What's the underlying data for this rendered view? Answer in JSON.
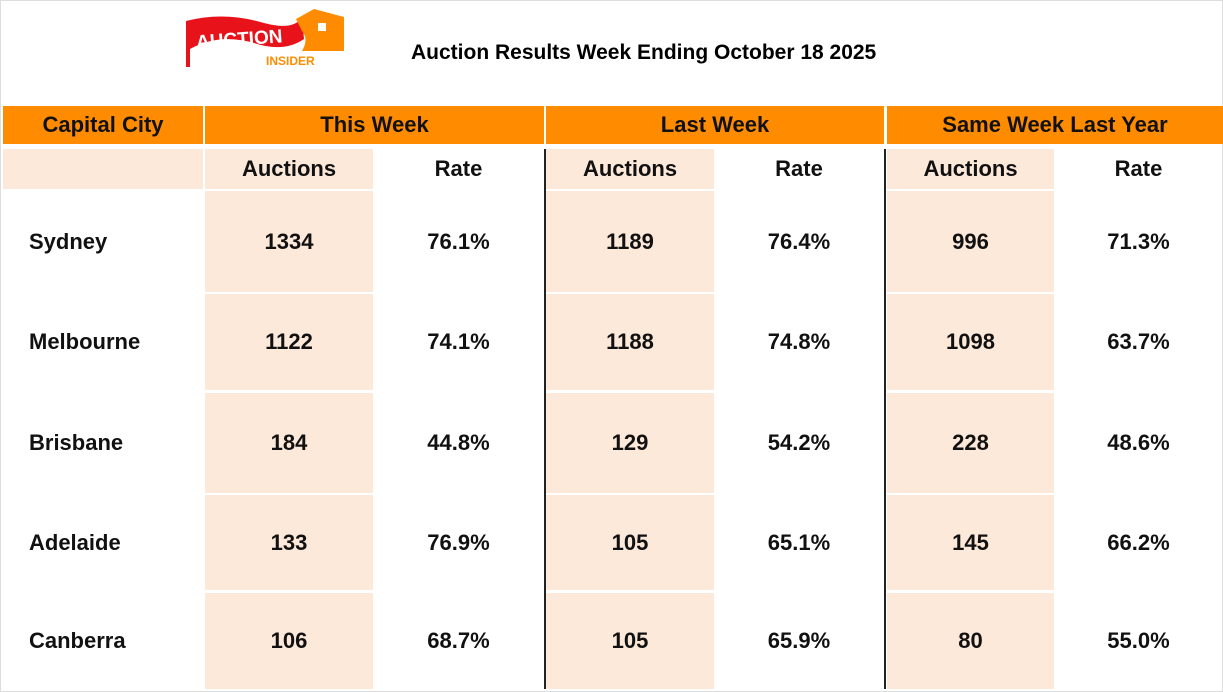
{
  "logo": {
    "text_main": "AUCTION",
    "text_sub": "INSIDER"
  },
  "title": "Auction Results Week Ending October 18 2025",
  "headers": {
    "city": "Capital City",
    "groups": [
      "This Week",
      "Last Week",
      "Same Week Last Year"
    ],
    "sub": [
      "Auctions",
      "Rate"
    ]
  },
  "rows": [
    {
      "city": "Sydney",
      "vals": [
        "1334",
        "76.1%",
        "1189",
        "76.4%",
        "996",
        "71.3%"
      ]
    },
    {
      "city": "Melbourne",
      "vals": [
        "1122",
        "74.1%",
        "1188",
        "74.8%",
        "1098",
        "63.7%"
      ]
    },
    {
      "city": "Brisbane",
      "vals": [
        "184",
        "44.8%",
        "129",
        "54.2%",
        "228",
        "48.6%"
      ]
    },
    {
      "city": "Adelaide",
      "vals": [
        "133",
        "76.9%",
        "105",
        "65.1%",
        "145",
        "66.2%"
      ]
    },
    {
      "city": "Canberra",
      "vals": [
        "106",
        "68.7%",
        "105",
        "65.9%",
        "80",
        "55.0%"
      ]
    }
  ],
  "colors": {
    "header": "#FF8C00",
    "peach": "#FDE9DA"
  }
}
